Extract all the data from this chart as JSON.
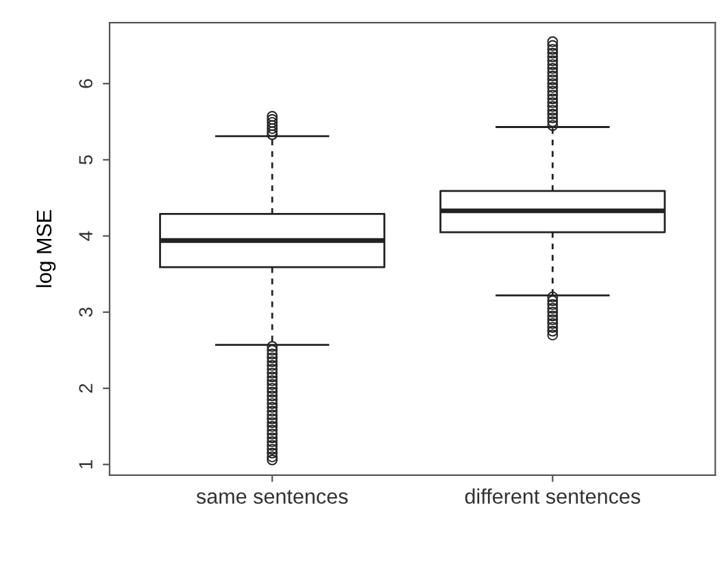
{
  "chart_data": {
    "type": "box",
    "ylabel": "log MSE",
    "categories": [
      "same sentences",
      "different sentences"
    ],
    "ylim": [
      0.86,
      6.8
    ],
    "yticks": [
      1,
      2,
      3,
      4,
      5,
      6
    ],
    "grid": false,
    "color": "#222222",
    "boxes": [
      {
        "low": 2.57,
        "q1": 3.59,
        "median": 3.94,
        "q3": 4.29,
        "high": 5.31,
        "outliers": [
          1.06,
          1.1,
          1.15,
          1.2,
          1.25,
          1.3,
          1.35,
          1.4,
          1.45,
          1.5,
          1.55,
          1.6,
          1.65,
          1.7,
          1.75,
          1.8,
          1.85,
          1.9,
          1.95,
          2.0,
          2.05,
          2.1,
          2.15,
          2.2,
          2.25,
          2.3,
          2.35,
          2.4,
          2.45,
          2.5,
          2.55,
          5.33,
          5.37,
          5.41,
          5.45,
          5.49,
          5.53,
          5.57
        ]
      },
      {
        "low": 3.22,
        "q1": 4.05,
        "median": 4.33,
        "q3": 4.59,
        "high": 5.43,
        "outliers": [
          2.7,
          2.75,
          2.8,
          2.85,
          2.9,
          2.95,
          3.0,
          3.05,
          3.1,
          3.15,
          3.2,
          5.45,
          5.5,
          5.55,
          5.6,
          5.65,
          5.7,
          5.75,
          5.8,
          5.85,
          5.9,
          5.95,
          6.0,
          6.05,
          6.1,
          6.15,
          6.2,
          6.25,
          6.3,
          6.35,
          6.4,
          6.45,
          6.5,
          6.55
        ]
      }
    ]
  }
}
